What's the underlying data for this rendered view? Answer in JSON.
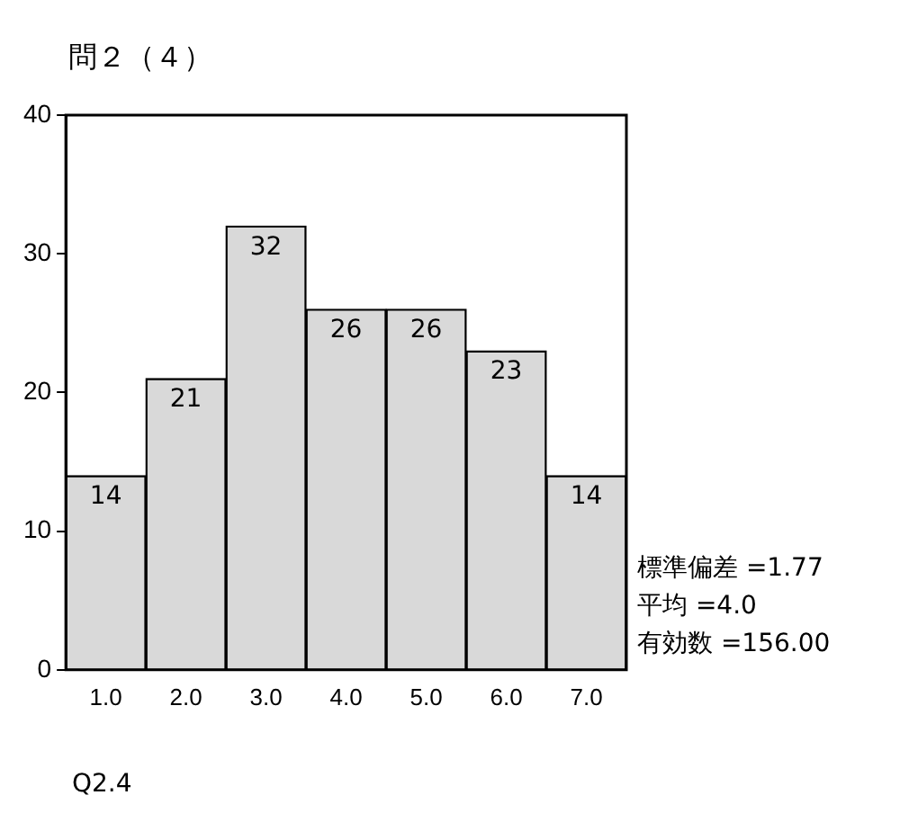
{
  "chart_data": {
    "type": "bar",
    "title": "問２（４）",
    "xlabel": "Q2.4",
    "categories": [
      "1.0",
      "2.0",
      "3.0",
      "4.0",
      "5.0",
      "6.0",
      "7.0"
    ],
    "values": [
      14,
      21,
      32,
      26,
      26,
      23,
      14
    ],
    "color": "#d9d9d9",
    "ylim": [
      0,
      40
    ],
    "yticks": [
      0,
      10,
      20,
      30,
      40
    ],
    "grid": false,
    "legend": false,
    "data_labels": true,
    "annotations": [
      "標準偏差 =1.77",
      "平均 =4.0",
      "有効数 =156.00"
    ]
  }
}
